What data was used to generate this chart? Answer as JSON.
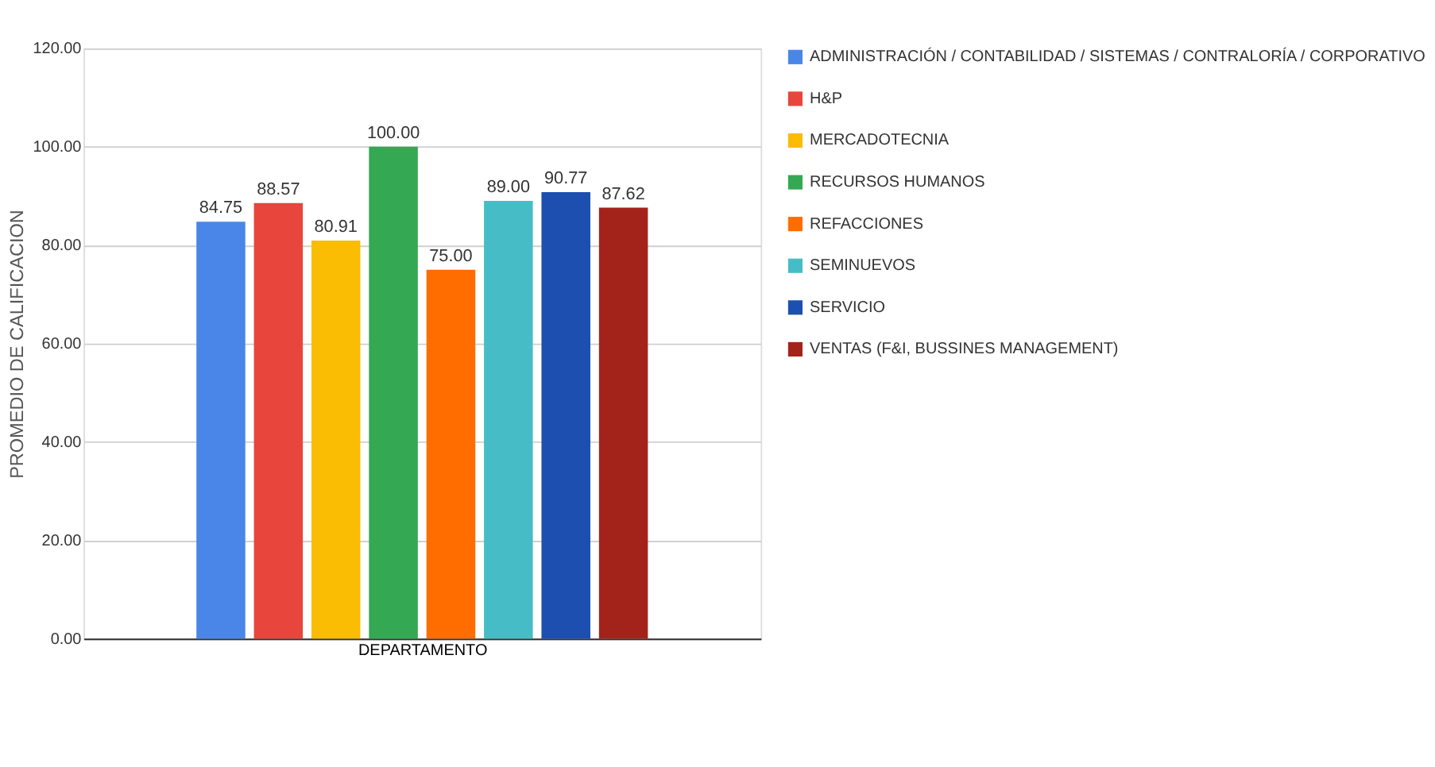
{
  "chart_data": {
    "type": "bar",
    "xlabel": "DEPARTAMENTO",
    "ylabel": "PROMEDIO DE CALIFICACION",
    "categories": [
      null
    ],
    "series": [
      {
        "name": "ADMINISTRACIÓN / CONTABILIDAD / SISTEMAS / CONTRALORÍA / CORPORATIVO",
        "color": "#4a86e8",
        "values": [
          84.75
        ],
        "value_labels": [
          "84.75"
        ]
      },
      {
        "name": "H&P",
        "color": "#e8453c",
        "values": [
          88.57
        ],
        "value_labels": [
          "88.57"
        ]
      },
      {
        "name": "MERCADOTECNIA",
        "color": "#fbbc04",
        "values": [
          80.91
        ],
        "value_labels": [
          "80.91"
        ]
      },
      {
        "name": "RECURSOS HUMANOS",
        "color": "#34a853",
        "values": [
          100
        ],
        "value_labels": [
          "100.00"
        ]
      },
      {
        "name": "REFACCIONES",
        "color": "#ff6d01",
        "values": [
          75
        ],
        "value_labels": [
          "75.00"
        ]
      },
      {
        "name": "SEMINUEVOS",
        "color": "#46bdc6",
        "values": [
          89
        ],
        "value_labels": [
          "89.00"
        ]
      },
      {
        "name": "SERVICIO",
        "color": "#1c4fb0",
        "values": [
          90.77
        ],
        "value_labels": [
          "90.77"
        ]
      },
      {
        "name": "VENTAS (F&I, BUSSINES MANAGEMENT)",
        "color": "#a3231b",
        "values": [
          87.62
        ],
        "value_labels": [
          "87.62"
        ]
      }
    ],
    "ylim": [
      0,
      120
    ],
    "yticks": [
      {
        "value": 0,
        "label": "0.00"
      },
      {
        "value": 20,
        "label": "20.00"
      },
      {
        "value": 40,
        "label": "40.00"
      },
      {
        "value": 60,
        "label": "60.00"
      },
      {
        "value": 80,
        "label": "80.00"
      },
      {
        "value": 100,
        "label": "100.00"
      },
      {
        "value": 120,
        "label": "120.00"
      }
    ],
    "grid": "y",
    "legend": "right"
  }
}
